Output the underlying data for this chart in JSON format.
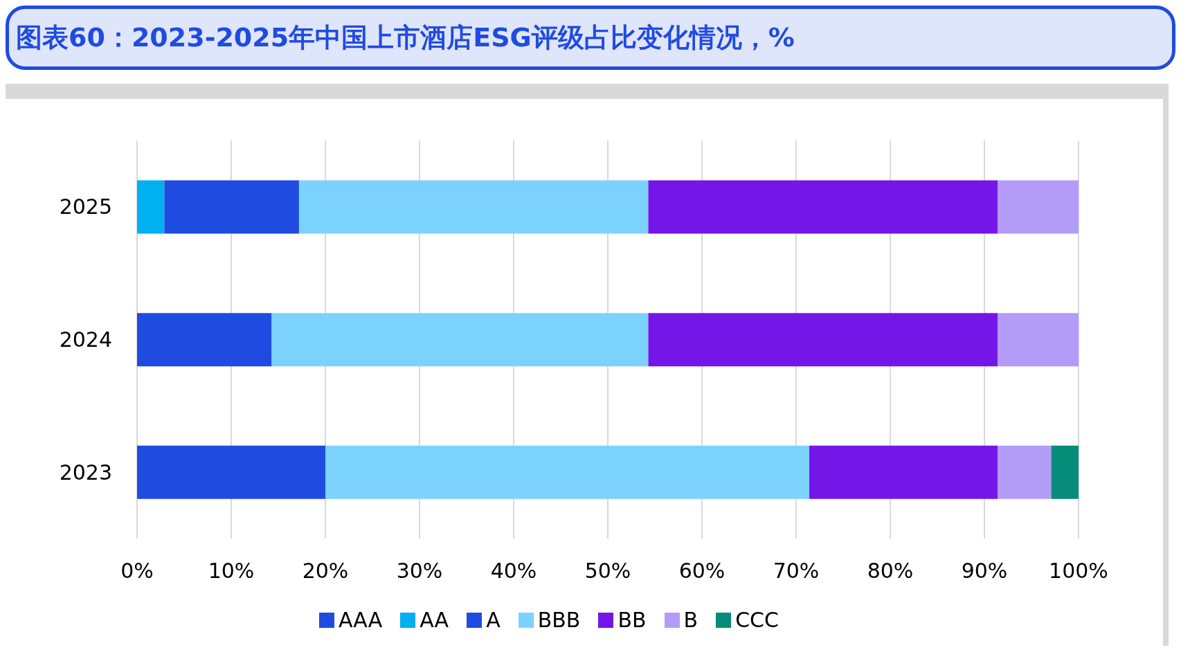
{
  "chart_data": {
    "type": "bar",
    "orientation": "horizontal",
    "stacked": true,
    "title": "图表60：2023-2025年中国上市酒店ESG评级占比变化情况，%",
    "categories": [
      "2025",
      "2024",
      "2023"
    ],
    "series": [
      {
        "name": "AAA",
        "color": "#1f4be0",
        "values": [
          0,
          0,
          0
        ]
      },
      {
        "name": "AA",
        "color": "#00b0f0",
        "values": [
          2.9,
          0,
          0
        ]
      },
      {
        "name": "A",
        "color": "#1f4be0",
        "values": [
          14.3,
          14.3,
          20
        ]
      },
      {
        "name": "BBB",
        "color": "#7bd3fd",
        "values": [
          37.1,
          40,
          51.4
        ]
      },
      {
        "name": "BB",
        "color": "#7416e8",
        "values": [
          37.1,
          37.1,
          20
        ]
      },
      {
        "name": "B",
        "color": "#b39cf8",
        "values": [
          8.6,
          8.6,
          5.7
        ]
      },
      {
        "name": "CCC",
        "color": "#078c7a",
        "values": [
          0,
          0,
          2.9
        ]
      }
    ],
    "xlim": [
      0,
      100
    ],
    "xticks": [
      {
        "value": 0,
        "label": "0%"
      },
      {
        "value": 10,
        "label": "10%"
      },
      {
        "value": 20,
        "label": "20%"
      },
      {
        "value": 30,
        "label": "30%"
      },
      {
        "value": 40,
        "label": "40%"
      },
      {
        "value": 50,
        "label": "50%"
      },
      {
        "value": 60,
        "label": "60%"
      },
      {
        "value": 70,
        "label": "70%"
      },
      {
        "value": 80,
        "label": "80%"
      },
      {
        "value": 90,
        "label": "90%"
      },
      {
        "value": 100,
        "label": "100%"
      }
    ],
    "grid": "x",
    "legend": "bottom"
  }
}
